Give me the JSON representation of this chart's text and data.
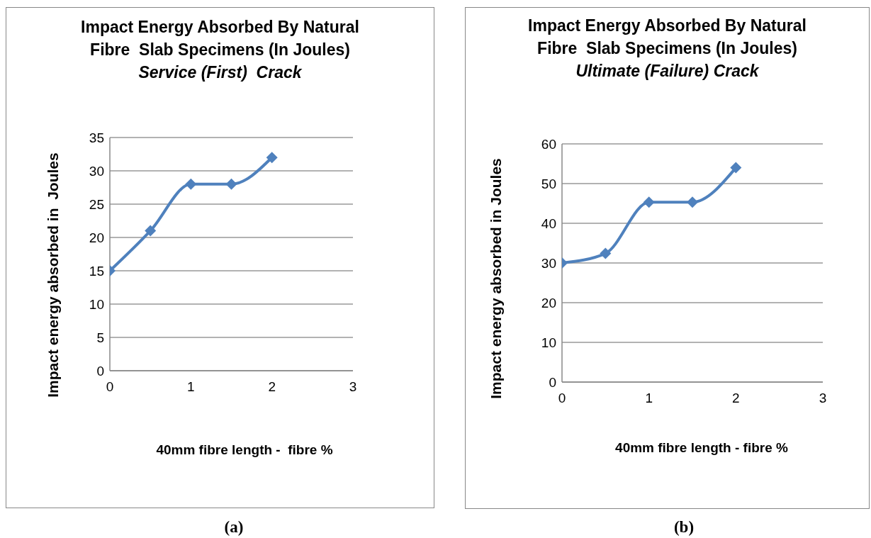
{
  "chart_data": [
    {
      "type": "line",
      "title": "Impact Energy Absorbed By Natural Fibre  Slab Specimens (In Joules)",
      "subtitle": "Service (First)  Crack",
      "ylabel": "Impact energy absorbed in  Joules",
      "xlabel": "40mm fibre length -  fibre %",
      "x": [
        0,
        0.5,
        1,
        1.5,
        2
      ],
      "series": [
        {
          "color": "#4f81bd",
          "values": [
            15,
            21,
            28,
            28,
            32
          ]
        }
      ],
      "xlim": [
        0,
        3
      ],
      "xticks": [
        0,
        1,
        2,
        3
      ],
      "ylim": [
        0,
        35
      ],
      "yticks": [
        0,
        5,
        10,
        15,
        20,
        25,
        30,
        35
      ],
      "grid": "y",
      "marker": "diamond",
      "line_style": "solid",
      "annotations": [
        "(a)"
      ]
    },
    {
      "type": "line",
      "title": "Impact Energy Absorbed By Natural Fibre  Slab Specimens (In Joules)",
      "subtitle": "Ultimate (Failure) Crack",
      "ylabel": "Impact energy absorbed in Joules",
      "xlabel": "40mm fibre length - fibre %",
      "x": [
        0,
        0.5,
        1,
        1.5,
        2
      ],
      "series": [
        {
          "color": "#4f81bd",
          "values": [
            30,
            32.4,
            45.3,
            45.3,
            54
          ]
        }
      ],
      "xlim": [
        0,
        3
      ],
      "xticks": [
        0,
        1,
        2,
        3
      ],
      "ylim": [
        0,
        60
      ],
      "yticks": [
        0,
        10,
        20,
        30,
        40,
        50,
        60
      ],
      "grid": "y",
      "marker": "diamond",
      "line_style": "solid",
      "annotations": [
        "(b)"
      ]
    }
  ]
}
